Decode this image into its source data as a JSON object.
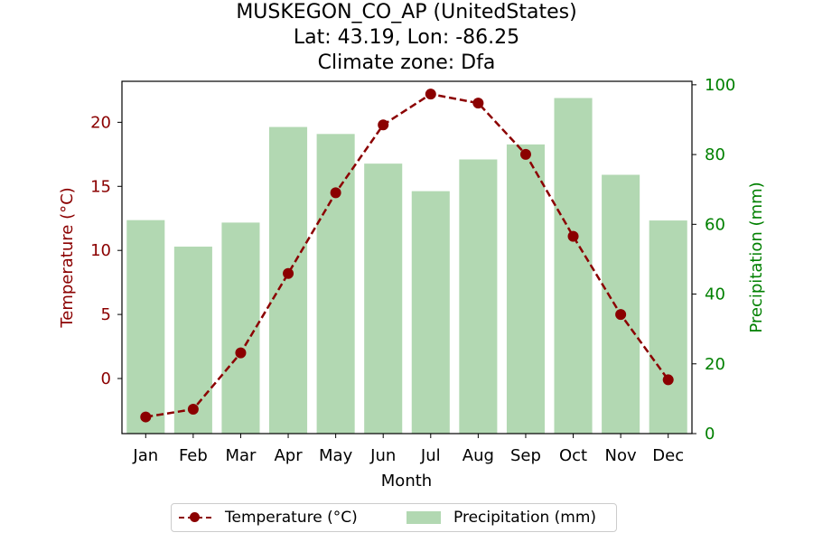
{
  "title": {
    "line1": "MUSKEGON_CO_AP (UnitedStates)",
    "line2": "Lat: 43.19, Lon: -86.25",
    "line3": "Climate zone: Dfa"
  },
  "colors": {
    "temperature": "#8b0000",
    "precipitation": "#b2d8b2",
    "precip_axis": "#008000"
  },
  "chart_data": {
    "type": "bar",
    "title": "MUSKEGON_CO_AP (UnitedStates)\nLat: 43.19, Lon: -86.25\nClimate zone: Dfa",
    "xlabel": "Month",
    "categories": [
      "Jan",
      "Feb",
      "Mar",
      "Apr",
      "May",
      "Jun",
      "Jul",
      "Aug",
      "Sep",
      "Oct",
      "Nov",
      "Dec"
    ],
    "series": [
      {
        "name": "Temperature (°C)",
        "type": "line",
        "axis": "left",
        "values": [
          -3.0,
          -2.4,
          2.0,
          8.2,
          14.5,
          19.8,
          22.2,
          21.5,
          17.5,
          11.1,
          5.0,
          -0.1
        ]
      },
      {
        "name": "Precipitation (mm)",
        "type": "bar",
        "axis": "right",
        "values": [
          61.2,
          53.6,
          60.5,
          87.9,
          85.9,
          77.4,
          69.5,
          78.6,
          82.9,
          96.2,
          74.2,
          61.1
        ]
      }
    ],
    "y_left": {
      "label": "Temperature (°C)",
      "lim": [
        -4.3,
        23.2
      ],
      "ticks": [
        0,
        5,
        10,
        15,
        20
      ]
    },
    "y_right": {
      "label": "Precipitation (mm)",
      "lim": [
        0,
        101
      ],
      "ticks": [
        0,
        20,
        40,
        60,
        80,
        100
      ]
    },
    "grid": false,
    "legend": "bottom-center"
  }
}
